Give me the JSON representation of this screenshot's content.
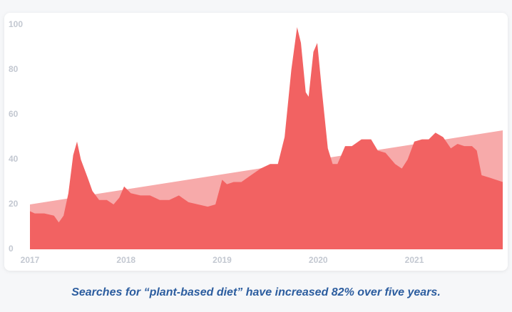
{
  "chart_data": {
    "type": "area",
    "caption": "Searches for “plant-based diet” have increased 82% over five years.",
    "xlim": [
      2017,
      2021.92
    ],
    "xticks": [
      2017,
      2018,
      2019,
      2020,
      2021
    ],
    "ylim": [
      0,
      100
    ],
    "yticks": [
      0,
      20,
      40,
      60,
      80,
      100
    ],
    "series": [
      {
        "color": "#f7aaaa",
        "x": [
          2017,
          2021.92
        ],
        "values": [
          20,
          53
        ]
      },
      {
        "color": "#f26262",
        "x": [
          2017.0,
          2017.05,
          2017.15,
          2017.25,
          2017.3,
          2017.35,
          2017.4,
          2017.45,
          2017.49,
          2017.53,
          2017.6,
          2017.65,
          2017.72,
          2017.8,
          2017.87,
          2017.93,
          2017.98,
          2018.05,
          2018.15,
          2018.25,
          2018.35,
          2018.45,
          2018.55,
          2018.65,
          2018.75,
          2018.85,
          2018.93,
          2019.0,
          2019.05,
          2019.12,
          2019.2,
          2019.3,
          2019.4,
          2019.5,
          2019.58,
          2019.65,
          2019.72,
          2019.78,
          2019.82,
          2019.87,
          2019.9,
          2019.95,
          2019.99,
          2020.04,
          2020.1,
          2020.15,
          2020.2,
          2020.28,
          2020.35,
          2020.45,
          2020.55,
          2020.62,
          2020.7,
          2020.8,
          2020.87,
          2020.93,
          2021.0,
          2021.08,
          2021.15,
          2021.22,
          2021.3,
          2021.38,
          2021.45,
          2021.52,
          2021.6,
          2021.65,
          2021.7,
          2021.78,
          2021.85,
          2021.92
        ],
        "values": [
          17,
          16,
          16,
          15,
          12,
          15,
          25,
          42,
          48,
          40,
          32,
          26,
          22,
          22,
          20,
          23,
          28,
          25,
          24,
          24,
          22,
          22,
          24,
          21,
          20,
          19,
          20,
          31,
          29,
          30,
          30,
          33,
          36,
          38,
          38,
          50,
          80,
          99,
          92,
          70,
          68,
          88,
          92,
          70,
          45,
          38,
          38,
          46,
          46,
          49,
          49,
          44,
          43,
          38,
          36,
          40,
          48,
          49,
          49,
          52,
          50,
          45,
          47,
          46,
          46,
          44,
          33,
          32,
          31,
          30
        ]
      }
    ]
  }
}
